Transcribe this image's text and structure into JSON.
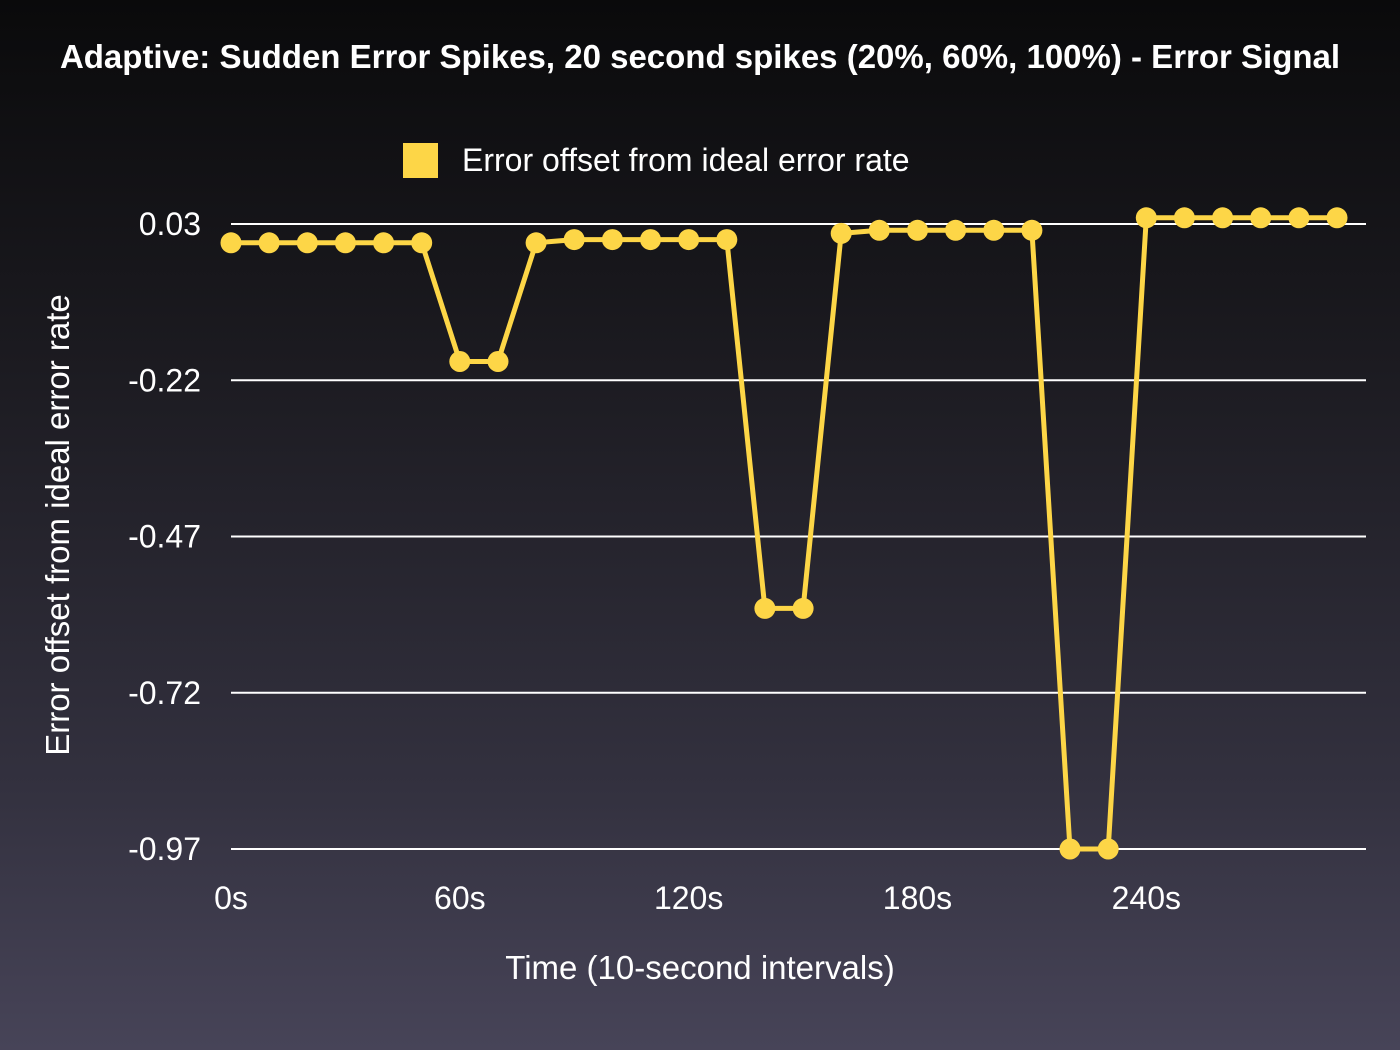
{
  "colors": {
    "series": "#fdd647",
    "grid": "#ffffff",
    "text": "#ffffff"
  },
  "chart_data": {
    "type": "line",
    "title": "Adaptive: Sudden Error Spikes, 20 second spikes (20%, 60%, 100%) - Error Signal",
    "xlabel": "Time (10-second intervals)",
    "ylabel": "Error offset from ideal error rate",
    "ylim": [
      -0.97,
      0.03
    ],
    "y_ticks": [
      "0.03",
      "-0.22",
      "-0.47",
      "-0.72",
      "-0.97"
    ],
    "x_ticks": [
      {
        "value": 0,
        "label": "0s"
      },
      {
        "value": 60,
        "label": "60s"
      },
      {
        "value": 120,
        "label": "120s"
      },
      {
        "value": 180,
        "label": "180s"
      },
      {
        "value": 240,
        "label": "240s"
      }
    ],
    "xlim": [
      0,
      290
    ],
    "grid": true,
    "legend_position": "top-center",
    "series": [
      {
        "name": "Error offset from ideal error rate",
        "x": [
          0,
          10,
          20,
          30,
          40,
          50,
          60,
          70,
          80,
          90,
          100,
          110,
          120,
          130,
          140,
          150,
          160,
          170,
          180,
          190,
          200,
          210,
          220,
          230,
          240,
          250,
          260,
          270,
          280,
          290
        ],
        "values": [
          0.0,
          0.0,
          0.0,
          0.0,
          0.0,
          0.0,
          -0.19,
          -0.19,
          0.0,
          0.005,
          0.005,
          0.005,
          0.005,
          0.005,
          -0.585,
          -0.585,
          0.015,
          0.02,
          0.02,
          0.02,
          0.02,
          0.02,
          -0.97,
          -0.97,
          0.04,
          0.04,
          0.04,
          0.04,
          0.04,
          0.04
        ]
      }
    ]
  }
}
